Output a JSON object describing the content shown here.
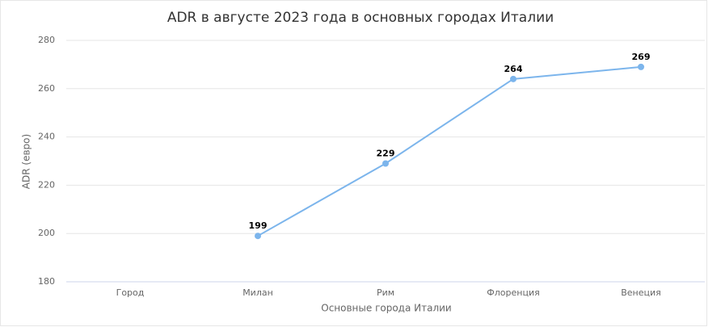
{
  "chart_data": {
    "type": "line",
    "title": "ADR в августе 2023 года в основных городах Италии",
    "x_label": "Основные города Италии",
    "y_label": "ADR (евро)",
    "categories": [
      "Город",
      "Милан",
      "Рим",
      "Флоренция",
      "Венеция"
    ],
    "values": [
      null,
      199,
      229,
      264,
      269
    ],
    "color": "#7cb5ec",
    "ylim": [
      180,
      280
    ],
    "yticks": [
      180,
      200,
      220,
      240,
      260,
      280
    ],
    "grid": true
  }
}
